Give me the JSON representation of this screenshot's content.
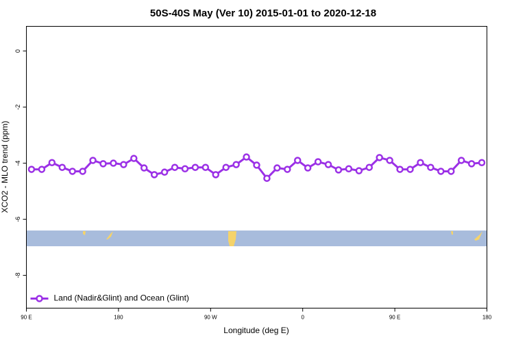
{
  "chart_data": {
    "type": "line",
    "title": "50S-40S May (Ver 10)   2015-01-01 to 2020-12-18",
    "x_label": "Longitude (deg E)",
    "y_label": "XCO2 - MLO trend (ppm)",
    "x": [
      95,
      105,
      115,
      125,
      135,
      145,
      155,
      165,
      175,
      185,
      195,
      205,
      215,
      225,
      235,
      245,
      255,
      265,
      275,
      285,
      295,
      305,
      315,
      325,
      335,
      345,
      355,
      365,
      375,
      385,
      395,
      405,
      415,
      425,
      435,
      445,
      455,
      465,
      475,
      485,
      495,
      505,
      515,
      525,
      535
    ],
    "series": [
      {
        "name": "Land (Nadir&Glint) and Ocean (Glint)",
        "color": "#9b30e6",
        "values": [
          -4.22,
          -4.22,
          -3.98,
          -4.15,
          -4.29,
          -4.29,
          -3.9,
          -4.02,
          -4.0,
          -4.05,
          -3.83,
          -4.17,
          -4.41,
          -4.32,
          -4.15,
          -4.2,
          -4.15,
          -4.15,
          -4.41,
          -4.15,
          -4.05,
          -3.78,
          -4.07,
          -4.54,
          -4.17,
          -4.22,
          -3.9,
          -4.17,
          -3.95,
          -4.05,
          -4.24,
          -4.2,
          -4.27,
          -4.15,
          -3.8,
          -3.9,
          -4.22,
          -4.22,
          -3.98,
          -4.15,
          -4.29,
          -4.29,
          -3.9,
          -4.02,
          -3.98
        ]
      }
    ],
    "xlim": [
      90,
      540
    ],
    "ylim": [
      -9.17,
      0.88
    ],
    "xticks": [
      {
        "value": 90,
        "label": "90 E"
      },
      {
        "value": 180,
        "label": "180"
      },
      {
        "value": 270,
        "label": "90 W"
      },
      {
        "value": 360,
        "label": "0"
      },
      {
        "value": 450,
        "label": "90 E"
      },
      {
        "value": 540,
        "label": "180"
      }
    ],
    "yticks": [
      0,
      -2,
      -4,
      -6,
      -8
    ],
    "legend": "bottom-left"
  }
}
